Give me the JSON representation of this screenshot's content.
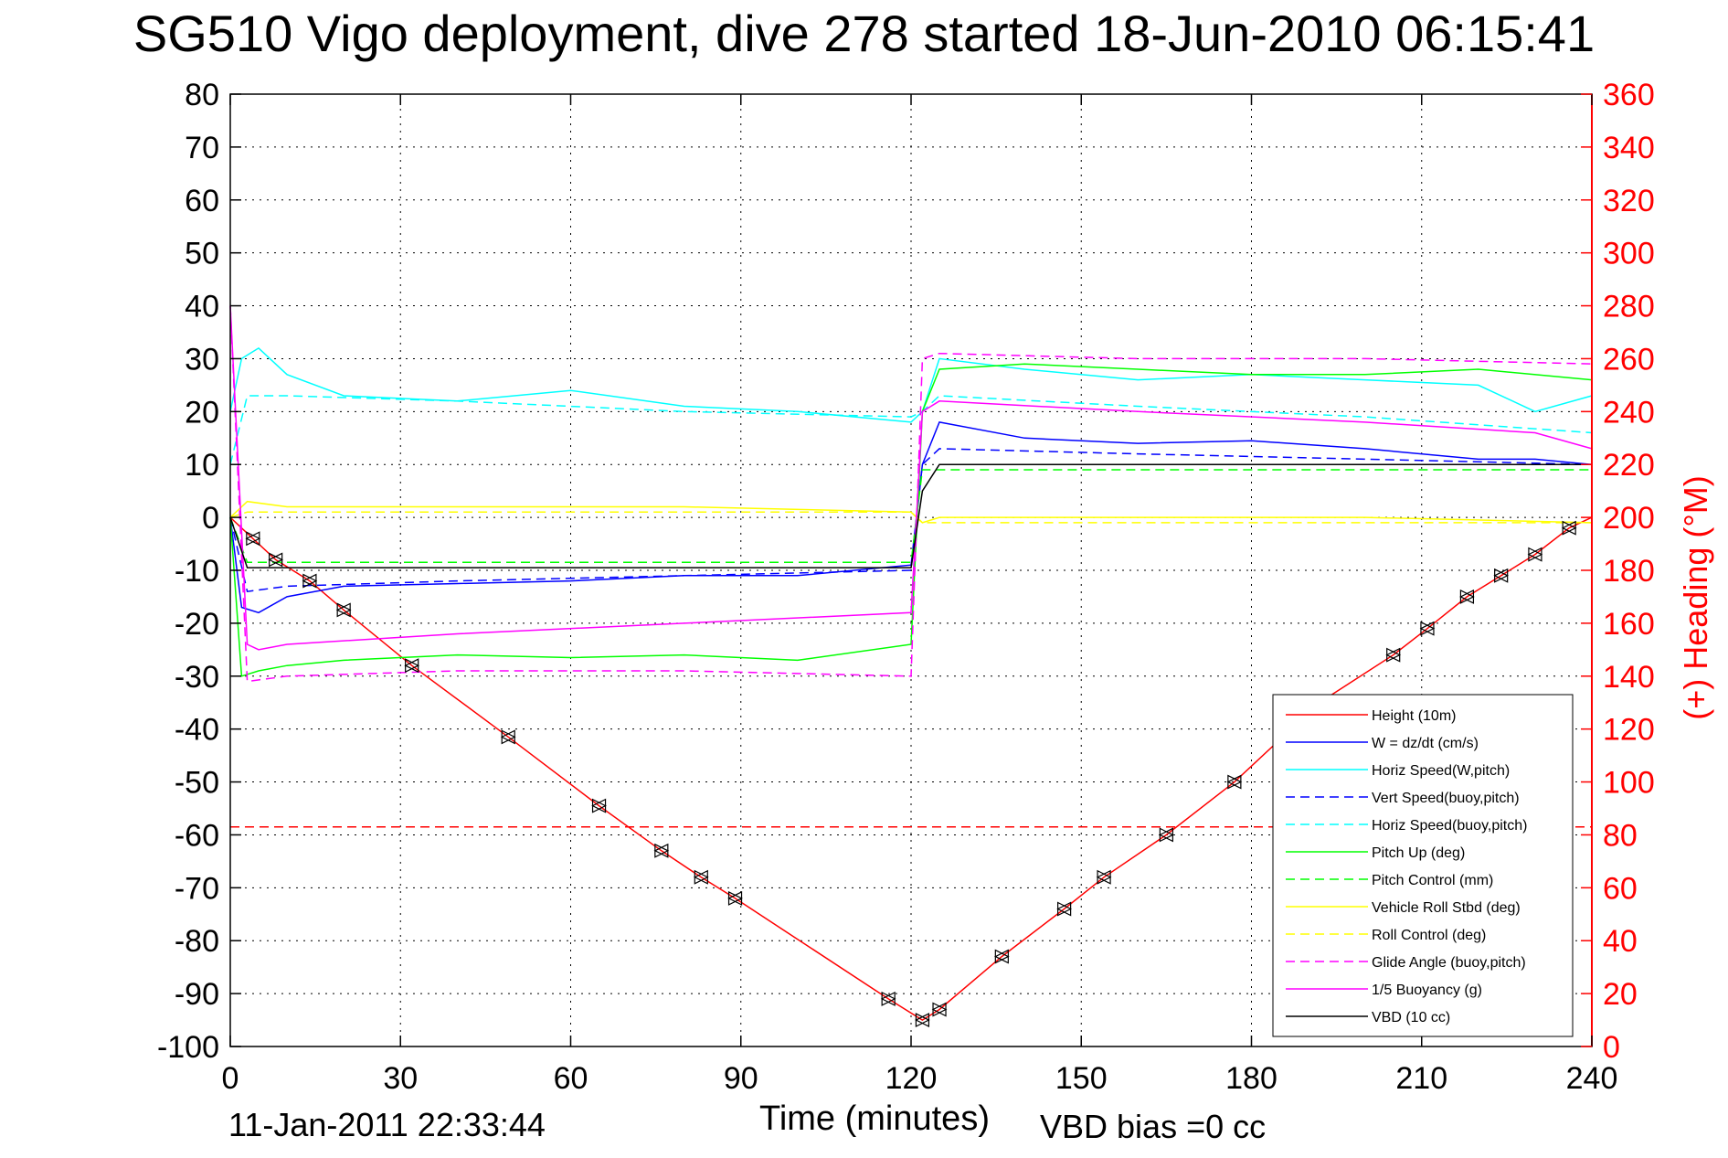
{
  "chart_data": {
    "type": "line",
    "title": "SG510 Vigo deployment, dive 278 started 18-Jun-2010 06:15:41",
    "xlabel": "Time (minutes)",
    "ylabel": "",
    "y2label": "(+) Heading (°M)",
    "xlim": [
      0,
      240
    ],
    "ylim": [
      -100,
      80
    ],
    "y2lim": [
      0,
      360
    ],
    "xticks": [
      0,
      30,
      60,
      90,
      120,
      150,
      180,
      210,
      240
    ],
    "yticks": [
      80,
      70,
      60,
      50,
      40,
      30,
      20,
      10,
      0,
      -10,
      -20,
      -30,
      -40,
      -50,
      -60,
      -70,
      -80,
      -90,
      -100
    ],
    "y2ticks": [
      360,
      340,
      320,
      300,
      280,
      260,
      240,
      220,
      200,
      180,
      160,
      140,
      120,
      100,
      80,
      60,
      40,
      20,
      0
    ],
    "grid": true,
    "legend_position": "bottom-right",
    "heading_mean": 83,
    "series": [
      {
        "name": "Height (10m)",
        "color": "#ff0000",
        "dash": "solid",
        "x": [
          0,
          4,
          8,
          14,
          20,
          32,
          49,
          65,
          76,
          83,
          89,
          116,
          122,
          125,
          136,
          147,
          154,
          165,
          177,
          192,
          205,
          211,
          218,
          224,
          230,
          236,
          240
        ],
        "y": [
          0,
          -4,
          -8,
          -12,
          -17.5,
          -28,
          -41.5,
          -54.5,
          -63,
          -68,
          -72,
          -91,
          -95,
          -93,
          -83,
          -74,
          -68,
          -60,
          -50,
          -35,
          -26,
          -21,
          -15,
          -11,
          -7,
          -2,
          0
        ]
      },
      {
        "name": "W = dz/dt (cm/s)",
        "color": "#0000ff",
        "dash": "solid",
        "x": [
          0,
          2,
          5,
          10,
          20,
          40,
          60,
          80,
          100,
          120,
          122,
          125,
          140,
          160,
          180,
          200,
          220,
          230,
          240
        ],
        "y": [
          0,
          -17,
          -18,
          -15,
          -13,
          -12.5,
          -12,
          -11,
          -11,
          -9,
          10,
          18,
          15,
          14,
          14.5,
          13,
          11,
          11,
          10
        ]
      },
      {
        "name": "Horiz Speed(W,pitch)",
        "color": "#00ffff",
        "dash": "solid",
        "x": [
          0,
          2,
          5,
          10,
          20,
          40,
          60,
          80,
          100,
          120,
          122,
          125,
          140,
          160,
          180,
          200,
          220,
          230,
          240
        ],
        "y": [
          20,
          30,
          32,
          27,
          23,
          22,
          24,
          21,
          20,
          18,
          20,
          30,
          28,
          26,
          27,
          26,
          25,
          20,
          23
        ]
      },
      {
        "name": "Vert Speed(buoy,pitch)",
        "color": "#0000ff",
        "dash": "dashed",
        "x": [
          0,
          3,
          10,
          40,
          80,
          120,
          122,
          125,
          160,
          200,
          240
        ],
        "y": [
          0,
          -14,
          -13,
          -12,
          -11,
          -10,
          10,
          13,
          12,
          11,
          10
        ]
      },
      {
        "name": "Horiz Speed(buoy,pitch)",
        "color": "#00ffff",
        "dash": "dashed",
        "x": [
          0,
          3,
          10,
          40,
          80,
          120,
          122,
          125,
          160,
          200,
          240
        ],
        "y": [
          10,
          23,
          23,
          22,
          20,
          19,
          20,
          23,
          21,
          19,
          16
        ]
      },
      {
        "name": "Pitch Up (deg)",
        "color": "#00ff00",
        "dash": "solid",
        "x": [
          0,
          2,
          5,
          10,
          20,
          40,
          60,
          80,
          100,
          120,
          122,
          125,
          140,
          160,
          180,
          200,
          220,
          240
        ],
        "y": [
          0,
          -30,
          -29,
          -28,
          -27,
          -26,
          -26.5,
          -26,
          -27,
          -24,
          20,
          28,
          29,
          28,
          27,
          27,
          28,
          26
        ]
      },
      {
        "name": "Pitch Control (mm)",
        "color": "#00ff00",
        "dash": "dashed",
        "x": [
          0,
          3,
          120,
          122,
          240
        ],
        "y": [
          0,
          -8.5,
          -8.5,
          9,
          9
        ]
      },
      {
        "name": "Vehicle Roll Stbd (deg)",
        "color": "#ffff00",
        "dash": "solid",
        "x": [
          0,
          3,
          10,
          40,
          80,
          120,
          122,
          125,
          160,
          200,
          240
        ],
        "y": [
          0,
          3,
          2,
          2,
          2,
          1,
          -1,
          0,
          0,
          0,
          -1
        ]
      },
      {
        "name": "Roll Control (deg)",
        "color": "#ffff00",
        "dash": "dashed",
        "x": [
          0,
          3,
          120,
          122,
          240
        ],
        "y": [
          0,
          1,
          1,
          -1,
          -1
        ]
      },
      {
        "name": "Glide Angle (buoy,pitch)",
        "color": "#ff00ff",
        "dash": "dashed",
        "x": [
          0,
          3,
          10,
          40,
          80,
          120,
          122,
          125,
          160,
          200,
          240
        ],
        "y": [
          40,
          -31,
          -30,
          -29,
          -29,
          -30,
          30,
          31,
          30,
          30,
          29
        ]
      },
      {
        "name": "1/5 Buoyancy (g)",
        "color": "#ff00ff",
        "dash": "solid",
        "x": [
          0,
          3,
          5,
          10,
          40,
          80,
          120,
          122,
          125,
          160,
          200,
          230,
          240
        ],
        "y": [
          40,
          -24,
          -25,
          -24,
          -22,
          -20,
          -18,
          20,
          22,
          20,
          18,
          16,
          13
        ]
      },
      {
        "name": "VBD (10 cc)",
        "color": "#000000",
        "dash": "solid",
        "x": [
          0,
          3,
          120,
          122,
          125,
          240
        ],
        "y": [
          0,
          -9.5,
          -9.5,
          5,
          10,
          10
        ]
      }
    ]
  },
  "footer": {
    "timestamp": "11-Jan-2011 22:33:44",
    "vbd_bias": "VBD bias =0 cc"
  }
}
